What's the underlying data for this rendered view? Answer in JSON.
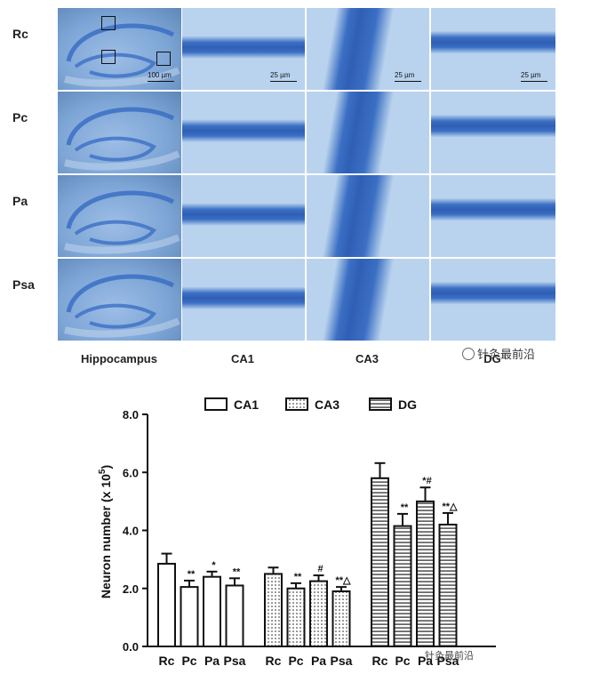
{
  "micrographs": {
    "row_labels": [
      "Rc",
      "Pc",
      "Pa",
      "Psa"
    ],
    "column_labels": [
      "Hippocampus",
      "CA1",
      "CA3",
      "DG"
    ],
    "scale_bars": {
      "overview": "100 µm",
      "detail": "25 µm"
    },
    "watermark": "针灸最前沿",
    "colors": {
      "stain": "#3b6fc4",
      "background": "#b9d3ee"
    }
  },
  "chart_data": {
    "type": "bar",
    "title": "",
    "ylabel": "Neuron number (x 10",
    "ylabel_superscript": "5",
    "ylabel_suffix": ")",
    "ylim": [
      0,
      8
    ],
    "yticks": [
      0,
      2,
      4,
      6,
      8
    ],
    "ytick_labels": [
      "0.0",
      "2.0",
      "4.0",
      "6.0",
      "8.0"
    ],
    "categories": [
      "Rc",
      "Pc",
      "Pa",
      "Psa"
    ],
    "legend_position": "top",
    "series": [
      {
        "name": "CA1",
        "pattern": "open",
        "values": [
          2.85,
          2.05,
          2.4,
          2.1
        ],
        "errors": [
          0.35,
          0.22,
          0.18,
          0.25
        ],
        "annotations": [
          "",
          "**",
          "*",
          "**"
        ]
      },
      {
        "name": "CA3",
        "pattern": "dotted",
        "values": [
          2.5,
          2.0,
          2.25,
          1.9
        ],
        "errors": [
          0.22,
          0.18,
          0.2,
          0.15
        ],
        "annotations": [
          "",
          "**",
          "#",
          "**△"
        ]
      },
      {
        "name": "DG",
        "pattern": "horizontal-lines",
        "values": [
          5.8,
          4.15,
          5.0,
          4.2
        ],
        "errors": [
          0.52,
          0.42,
          0.48,
          0.4
        ],
        "annotations": [
          "",
          "**",
          "*#",
          "**△"
        ]
      }
    ],
    "watermark": "针灸最前沿"
  }
}
